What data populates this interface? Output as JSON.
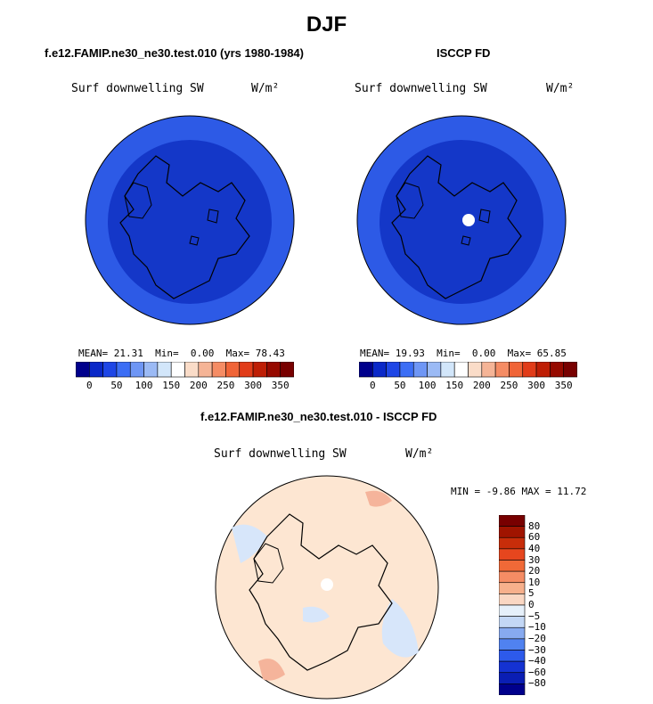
{
  "figure": {
    "title": "DJF"
  },
  "panels": [
    {
      "title": "f.e12.FAMIP.ne30_ne30.test.010 (yrs 1980-1984)",
      "variable": "Surf downwelling SW",
      "units": "W/m²",
      "stats": {
        "mean_label": "MEAN=",
        "mean": "21.31",
        "min_label": "Min=",
        "min": "0.00",
        "max_label": "Max=",
        "max": "78.43"
      }
    },
    {
      "title": "ISCCP FD",
      "variable": "Surf downwelling SW",
      "units": "W/m²",
      "stats": {
        "mean_label": "MEAN=",
        "mean": "19.93",
        "min_label": "Min=",
        "min": "0.00",
        "max_label": "Max=",
        "max": "65.85"
      }
    },
    {
      "title": "f.e12.FAMIP.ne30_ne30.test.010 - ISCCP FD",
      "variable": "Surf downwelling SW",
      "units": "W/m²",
      "stats": {
        "min_label": "MIN =",
        "min": "-9.86",
        "max_label": "MAX =",
        "max": "11.72"
      }
    }
  ],
  "colorbar_abs": {
    "ticks": [
      "0",
      "50",
      "100",
      "150",
      "200",
      "250",
      "300",
      "350"
    ],
    "colors": [
      "#00008c",
      "#0a28c8",
      "#1e46e6",
      "#3c6ef5",
      "#6e96f5",
      "#9bbaf5",
      "#d2e6fa",
      "#ffffff",
      "#fadcc8",
      "#f5b496",
      "#f58c64",
      "#f06437",
      "#e13c19",
      "#be1e05",
      "#960a00",
      "#780000"
    ]
  },
  "colorbar_diff": {
    "ticks": [
      "80",
      "60",
      "40",
      "30",
      "20",
      "10",
      "5",
      "0",
      "−5",
      "−10",
      "−20",
      "−30",
      "−40",
      "−60",
      "−80"
    ],
    "colors": [
      "#780000",
      "#a01400",
      "#c82d0a",
      "#e6461e",
      "#f06937",
      "#f58c64",
      "#f7b08c",
      "#fad7c3",
      "#e6f0fa",
      "#c3d7f5",
      "#87aaf0",
      "#5082f0",
      "#2d5aeb",
      "#1432d2",
      "#0a1eb4",
      "#00008c"
    ]
  },
  "map_colors": {
    "ocean_outer": "#2d5ae6",
    "inner": "#1437c8",
    "diff_base": "#fde6d2",
    "diff_blue": "#d7e6fa",
    "diff_red": "#f5b49b",
    "pole_hole": "#ffffff"
  }
}
